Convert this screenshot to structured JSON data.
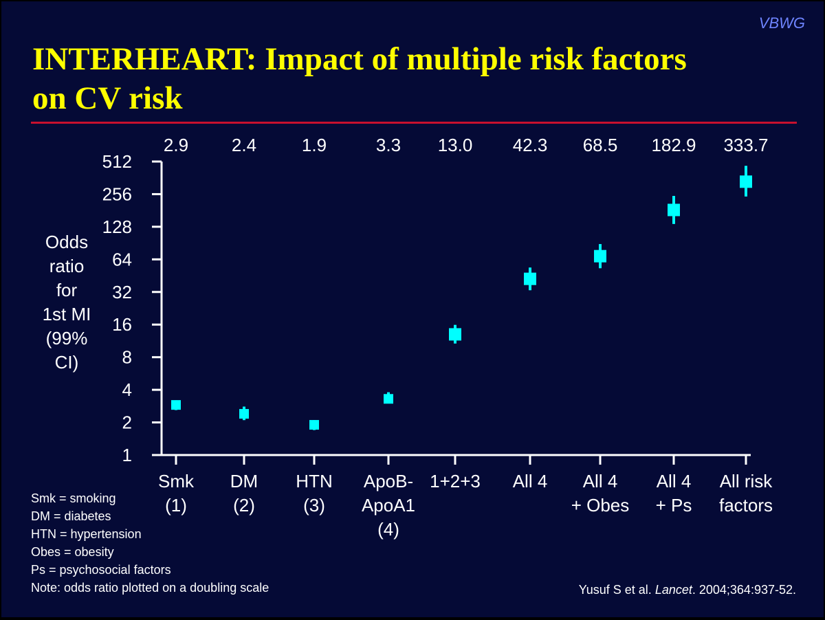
{
  "brand": "VBWG",
  "title_line1": "INTERHEART: Impact of multiple risk factors",
  "title_line2": "on CV risk",
  "colors": {
    "background": "#050a36",
    "title": "#ffff00",
    "rule": "#c8102e",
    "marker": "#00ffff",
    "text": "#ffffff",
    "brand": "#6e84ff"
  },
  "chart_data": {
    "type": "scatter",
    "title": "INTERHEART: Impact of multiple risk factors on CV risk",
    "ylabel": "Odds\nratio\n for\n1st MI\n(99%\nCI)",
    "yscale": "log2",
    "ylim": [
      1,
      512
    ],
    "yticks": [
      1,
      2,
      4,
      8,
      16,
      32,
      64,
      128,
      256,
      512
    ],
    "categories": [
      "Smk\n(1)",
      "DM\n(2)",
      "HTN\n(3)",
      "ApoB-\nApoA1\n(4)",
      "1+2+3",
      "All 4",
      "All 4\n+ Obes",
      "All 4\n+ Ps",
      "All risk\nfactors"
    ],
    "value_labels": [
      "2.9",
      "2.4",
      "1.9",
      "3.3",
      "13.0",
      "42.3",
      "68.5",
      "182.9",
      "333.7"
    ],
    "values": [
      2.9,
      2.4,
      1.9,
      3.3,
      13.0,
      42.3,
      68.5,
      182.9,
      333.7
    ],
    "ci_low": [
      2.6,
      2.1,
      1.7,
      3.0,
      10.7,
      33.2,
      53.0,
      135.8,
      243.5
    ],
    "ci_high": [
      3.2,
      2.8,
      2.1,
      3.8,
      15.9,
      53.8,
      88.6,
      246.5,
      467.3
    ]
  },
  "legend": [
    "Smk = smoking",
    "DM = diabetes",
    "HTN = hypertension",
    "Obes = obesity",
    "Ps = psychosocial factors",
    "Note: odds ratio plotted on a doubling scale"
  ],
  "source": {
    "prefix": "Yusuf S et al. ",
    "journal": "Lancet",
    "suffix": ". 2004;364:937-52."
  }
}
